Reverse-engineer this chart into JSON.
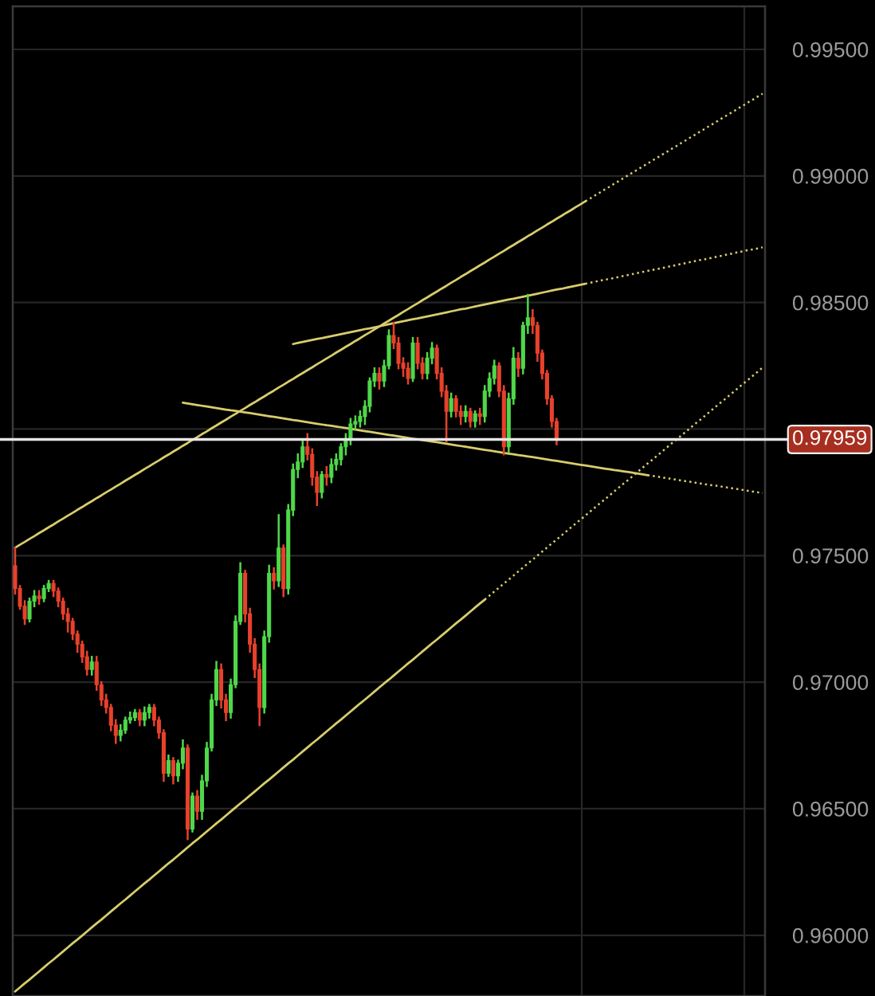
{
  "chart_data": {
    "type": "candlestick",
    "categories": [
      null,
      null,
      null,
      null,
      null,
      null,
      null,
      null,
      null,
      null,
      null,
      null,
      null,
      null,
      null,
      null,
      null,
      null,
      null,
      null,
      null,
      null,
      null,
      null,
      null,
      null,
      null,
      null,
      null,
      null,
      null,
      null,
      null,
      null,
      null,
      null,
      null,
      null,
      null,
      null,
      null,
      null,
      null,
      null,
      null,
      null,
      null,
      null,
      null,
      null,
      null,
      null,
      null,
      null,
      null,
      null,
      null,
      null,
      null,
      null,
      null,
      null,
      null,
      null,
      null,
      null,
      null,
      null,
      null,
      null,
      null,
      null,
      null,
      null,
      null,
      null,
      null,
      null,
      null,
      null,
      null,
      null,
      null,
      null,
      null,
      null,
      null,
      null,
      null,
      null,
      null,
      null,
      null,
      null,
      null,
      null,
      null,
      null,
      null,
      null,
      null,
      null,
      null,
      null,
      null,
      null,
      null,
      null,
      null,
      null,
      null,
      null,
      null,
      null,
      null,
      null,
      null,
      null,
      null,
      null,
      null,
      null,
      null,
      null,
      null,
      null,
      null,
      null,
      null,
      null,
      null,
      null,
      null,
      null,
      null,
      null,
      null,
      null,
      null,
      null,
      null,
      null,
      null,
      null,
      null,
      null,
      null,
      null,
      null,
      null,
      null,
      null,
      null,
      null,
      null,
      null,
      null
    ],
    "ohlc": [
      [
        0.9746,
        0.9753,
        0.9735,
        0.9737
      ],
      [
        0.9737,
        0.9738,
        0.9729,
        0.973
      ],
      [
        0.973,
        0.9732,
        0.9723,
        0.9725
      ],
      [
        0.9725,
        0.9733,
        0.9724,
        0.9732
      ],
      [
        0.9732,
        0.9736,
        0.973,
        0.9734
      ],
      [
        0.9734,
        0.9736,
        0.9731,
        0.9733
      ],
      [
        0.9733,
        0.9738,
        0.9732,
        0.9737
      ],
      [
        0.9737,
        0.974,
        0.9736,
        0.9739
      ],
      [
        0.9739,
        0.974,
        0.9734,
        0.9736
      ],
      [
        0.9736,
        0.9737,
        0.973,
        0.9732
      ],
      [
        0.9732,
        0.9733,
        0.9725,
        0.9727
      ],
      [
        0.9727,
        0.9729,
        0.972,
        0.9724
      ],
      [
        0.9724,
        0.9725,
        0.9717,
        0.9719
      ],
      [
        0.9719,
        0.972,
        0.9712,
        0.9715
      ],
      [
        0.9715,
        0.9716,
        0.9708,
        0.971
      ],
      [
        0.971,
        0.9712,
        0.9703,
        0.9705
      ],
      [
        0.9705,
        0.971,
        0.9703,
        0.9708
      ],
      [
        0.9708,
        0.971,
        0.9697,
        0.9699
      ],
      [
        0.9699,
        0.97,
        0.9691,
        0.9693
      ],
      [
        0.9693,
        0.9695,
        0.9688,
        0.969
      ],
      [
        0.969,
        0.9691,
        0.9681,
        0.9683
      ],
      [
        0.9683,
        0.9685,
        0.9676,
        0.9679
      ],
      [
        0.9679,
        0.9683,
        0.9677,
        0.9681
      ],
      [
        0.9681,
        0.9686,
        0.968,
        0.9685
      ],
      [
        0.9685,
        0.9688,
        0.9684,
        0.9686
      ],
      [
        0.9686,
        0.9689,
        0.9685,
        0.9688
      ],
      [
        0.9688,
        0.9689,
        0.9683,
        0.9685
      ],
      [
        0.9685,
        0.969,
        0.9683,
        0.9688
      ],
      [
        0.9688,
        0.9691,
        0.9686,
        0.969
      ],
      [
        0.969,
        0.9691,
        0.9683,
        0.9685
      ],
      [
        0.9685,
        0.9686,
        0.9678,
        0.968
      ],
      [
        0.968,
        0.9681,
        0.9661,
        0.9664
      ],
      [
        0.9664,
        0.9671,
        0.9663,
        0.9669
      ],
      [
        0.9669,
        0.967,
        0.966,
        0.9663
      ],
      [
        0.9663,
        0.9669,
        0.9661,
        0.9668
      ],
      [
        0.9668,
        0.9677,
        0.9666,
        0.9674
      ],
      [
        0.9674,
        0.9675,
        0.9638,
        0.9642
      ],
      [
        0.9642,
        0.9656,
        0.9641,
        0.9655
      ],
      [
        0.9655,
        0.9657,
        0.9646,
        0.9649
      ],
      [
        0.9649,
        0.9663,
        0.9646,
        0.9661
      ],
      [
        0.9661,
        0.9676,
        0.9659,
        0.9674
      ],
      [
        0.9674,
        0.9695,
        0.9673,
        0.9693
      ],
      [
        0.9693,
        0.9708,
        0.9691,
        0.9705
      ],
      [
        0.9705,
        0.9707,
        0.969,
        0.9693
      ],
      [
        0.9693,
        0.9695,
        0.9685,
        0.9688
      ],
      [
        0.9688,
        0.9701,
        0.9686,
        0.9699
      ],
      [
        0.9699,
        0.9726,
        0.9698,
        0.9724
      ],
      [
        0.9724,
        0.9747,
        0.9723,
        0.9743
      ],
      [
        0.9743,
        0.9744,
        0.9724,
        0.9727
      ],
      [
        0.9727,
        0.9729,
        0.9712,
        0.9715
      ],
      [
        0.9715,
        0.9717,
        0.9702,
        0.9705
      ],
      [
        0.9705,
        0.9707,
        0.9683,
        0.969
      ],
      [
        0.969,
        0.972,
        0.9688,
        0.9718
      ],
      [
        0.9718,
        0.9746,
        0.9716,
        0.9743
      ],
      [
        0.9743,
        0.9745,
        0.9737,
        0.974
      ],
      [
        0.974,
        0.9766,
        0.9738,
        0.9753
      ],
      [
        0.9753,
        0.9754,
        0.9734,
        0.9737
      ],
      [
        0.9737,
        0.977,
        0.9735,
        0.9768
      ],
      [
        0.9768,
        0.9786,
        0.9766,
        0.9784
      ],
      [
        0.9784,
        0.979,
        0.9781,
        0.9787
      ],
      [
        0.9787,
        0.9795,
        0.9785,
        0.9793
      ],
      [
        0.9793,
        0.9798,
        0.9788,
        0.979
      ],
      [
        0.979,
        0.9792,
        0.9778,
        0.9781
      ],
      [
        0.9781,
        0.9783,
        0.977,
        0.9775
      ],
      [
        0.9775,
        0.9783,
        0.9773,
        0.9782
      ],
      [
        0.9782,
        0.9785,
        0.9778,
        0.9781
      ],
      [
        0.9781,
        0.9788,
        0.9779,
        0.9786
      ],
      [
        0.9786,
        0.979,
        0.9784,
        0.9788
      ],
      [
        0.9788,
        0.9794,
        0.9786,
        0.9793
      ],
      [
        0.9793,
        0.9798,
        0.979,
        0.9796
      ],
      [
        0.9796,
        0.9804,
        0.9794,
        0.9802
      ],
      [
        0.9802,
        0.9805,
        0.98,
        0.9803
      ],
      [
        0.9803,
        0.9807,
        0.9801,
        0.9805
      ],
      [
        0.9805,
        0.9811,
        0.9802,
        0.9809
      ],
      [
        0.9809,
        0.982,
        0.9807,
        0.9819
      ],
      [
        0.9819,
        0.9824,
        0.9817,
        0.9822
      ],
      [
        0.9822,
        0.9824,
        0.9816,
        0.9819
      ],
      [
        0.9819,
        0.9827,
        0.9817,
        0.9825
      ],
      [
        0.9825,
        0.9839,
        0.9824,
        0.9837
      ],
      [
        0.9837,
        0.9842,
        0.9832,
        0.9834
      ],
      [
        0.9834,
        0.9836,
        0.9824,
        0.9826
      ],
      [
        0.9826,
        0.9828,
        0.9821,
        0.9824
      ],
      [
        0.9824,
        0.9826,
        0.9818,
        0.982
      ],
      [
        0.982,
        0.9836,
        0.9819,
        0.9834
      ],
      [
        0.9834,
        0.9836,
        0.9824,
        0.9826
      ],
      [
        0.9826,
        0.9828,
        0.982,
        0.9822
      ],
      [
        0.9822,
        0.983,
        0.982,
        0.9828
      ],
      [
        0.9828,
        0.9834,
        0.9826,
        0.9832
      ],
      [
        0.9832,
        0.9833,
        0.982,
        0.9822
      ],
      [
        0.9822,
        0.9824,
        0.9813,
        0.9815
      ],
      [
        0.9815,
        0.9817,
        0.9795,
        0.9807
      ],
      [
        0.9807,
        0.9814,
        0.9805,
        0.9812
      ],
      [
        0.9812,
        0.9813,
        0.9805,
        0.9807
      ],
      [
        0.9807,
        0.9809,
        0.9802,
        0.9805
      ],
      [
        0.9805,
        0.9809,
        0.9803,
        0.9807
      ],
      [
        0.9807,
        0.9808,
        0.9801,
        0.9803
      ],
      [
        0.9803,
        0.9807,
        0.9801,
        0.9806
      ],
      [
        0.9806,
        0.9808,
        0.9802,
        0.9805
      ],
      [
        0.9805,
        0.9817,
        0.9803,
        0.9815
      ],
      [
        0.9815,
        0.9822,
        0.9813,
        0.982
      ],
      [
        0.982,
        0.9827,
        0.9818,
        0.9825
      ],
      [
        0.9825,
        0.9826,
        0.9813,
        0.9815
      ],
      [
        0.9815,
        0.9817,
        0.979,
        0.9793
      ],
      [
        0.9793,
        0.9814,
        0.9791,
        0.9812
      ],
      [
        0.9812,
        0.9832,
        0.981,
        0.9828
      ],
      [
        0.9828,
        0.983,
        0.9821,
        0.9824
      ],
      [
        0.9824,
        0.9842,
        0.9822,
        0.9841
      ],
      [
        0.9841,
        0.9853,
        0.9838,
        0.9844
      ],
      [
        0.9844,
        0.9847,
        0.9838,
        0.9841
      ],
      [
        0.9841,
        0.9842,
        0.9827,
        0.983
      ],
      [
        0.983,
        0.9831,
        0.982,
        0.9822
      ],
      [
        0.9822,
        0.9823,
        0.981,
        0.9812
      ],
      [
        0.9812,
        0.9813,
        0.9801,
        0.9803
      ],
      [
        0.9803,
        0.9804,
        0.9794,
        0.97959
      ],
      null,
      null,
      null,
      null,
      null,
      null,
      null,
      null,
      null,
      null,
      null,
      null,
      null,
      null,
      null,
      null,
      null,
      null,
      null,
      null,
      null,
      null,
      null,
      null,
      null,
      null,
      null,
      null,
      null,
      null,
      null,
      null,
      null,
      null,
      null,
      null,
      null,
      null,
      null,
      null,
      null,
      null,
      null
    ],
    "colors": [
      "#e8412c",
      "#e8412c",
      "#e8412c",
      "#4fd84a",
      "#4fd84a",
      "#e8412c",
      "#4fd84a",
      "#4fd84a",
      "#e8412c",
      "#e8412c",
      "#e8412c",
      "#e8412c",
      "#e8412c",
      "#e8412c",
      "#e8412c",
      "#e8412c",
      "#4fd84a",
      "#e8412c",
      "#e8412c",
      "#e8412c",
      "#e8412c",
      "#e8412c",
      "#4fd84a",
      "#4fd84a",
      "#4fd84a",
      "#4fd84a",
      "#e8412c",
      "#4fd84a",
      "#4fd84a",
      "#e8412c",
      "#e8412c",
      "#e8412c",
      "#4fd84a",
      "#e8412c",
      "#4fd84a",
      "#4fd84a",
      "#e8412c",
      "#4fd84a",
      "#e8412c",
      "#4fd84a",
      "#4fd84a",
      "#4fd84a",
      "#4fd84a",
      "#e8412c",
      "#e8412c",
      "#4fd84a",
      "#4fd84a",
      "#4fd84a",
      "#e8412c",
      "#e8412c",
      "#e8412c",
      "#e8412c",
      "#4fd84a",
      "#4fd84a",
      "#e8412c",
      "#4fd84a",
      "#e8412c",
      "#4fd84a",
      "#4fd84a",
      "#4fd84a",
      "#4fd84a",
      "#e8412c",
      "#e8412c",
      "#e8412c",
      "#4fd84a",
      "#e8412c",
      "#4fd84a",
      "#4fd84a",
      "#4fd84a",
      "#4fd84a",
      "#4fd84a",
      "#4fd84a",
      "#4fd84a",
      "#4fd84a",
      "#4fd84a",
      "#4fd84a",
      "#e8412c",
      "#4fd84a",
      "#4fd84a",
      "#e8412c",
      "#e8412c",
      "#e8412c",
      "#e8412c",
      "#4fd84a",
      "#e8412c",
      "#e8412c",
      "#4fd84a",
      "#4fd84a",
      "#e8412c",
      "#e8412c",
      "#e8412c",
      "#4fd84a",
      "#e8412c",
      "#e8412c",
      "#4fd84a",
      "#e8412c",
      "#4fd84a",
      "#e8412c",
      "#4fd84a",
      "#4fd84a",
      "#4fd84a",
      "#e8412c",
      "#e8412c",
      "#4fd84a",
      "#4fd84a",
      "#e8412c",
      "#4fd84a",
      "#4fd84a",
      "#e8412c",
      "#e8412c",
      "#e8412c",
      "#e8412c",
      "#e8412c",
      "#e8412c",
      null,
      null,
      null,
      null,
      null,
      null,
      null,
      null,
      null,
      null,
      null,
      null,
      null,
      null,
      null,
      null,
      null,
      null,
      null,
      null,
      null,
      null,
      null,
      null,
      null,
      null,
      null,
      null,
      null,
      null,
      null,
      null,
      null,
      null,
      null,
      null,
      null,
      null,
      null,
      null,
      null,
      null,
      null
    ],
    "series": [
      {
        "type": "line",
        "color": "#d8cd6c",
        "line_style": "solid",
        "values": [
          0.97531,
          0.97543,
          0.97554,
          0.97566,
          0.97577,
          0.97589,
          0.976,
          0.97612,
          0.97623,
          0.97635,
          0.97646,
          0.97658,
          0.97669,
          0.97681,
          0.97692,
          0.97704,
          0.97715,
          0.97727,
          0.97738,
          0.9775,
          0.97761,
          0.97773,
          0.97784,
          0.97796,
          0.97807,
          0.97819,
          0.9783,
          0.97842,
          0.97853,
          0.97865,
          0.97876,
          0.97888,
          0.97899,
          0.97911,
          0.97922,
          0.97934,
          0.97945,
          0.97957,
          0.97968,
          0.9798,
          0.97991,
          0.98003,
          0.98014,
          0.98026,
          0.98037,
          0.98049,
          0.9806,
          0.98072,
          0.98083,
          0.98095,
          0.98106,
          0.98118,
          0.98129,
          0.98141,
          0.98152,
          0.98164,
          0.98175,
          0.98187,
          0.98198,
          0.9821,
          0.98221,
          0.98233,
          0.98244,
          0.98256,
          0.98267,
          0.98279,
          0.9829,
          0.98302,
          0.98313,
          0.98325,
          0.98336,
          0.98348,
          0.98359,
          0.98371,
          0.98382,
          0.98394,
          0.98405,
          0.98417,
          0.98428,
          0.9844,
          0.98451,
          0.98463,
          0.98474,
          0.98486,
          0.98497,
          0.98509,
          0.9852,
          0.98532,
          0.98543,
          0.98555,
          0.98566,
          0.98578,
          0.98589,
          0.98601,
          0.98612,
          0.98624,
          0.98635,
          0.98647,
          0.98658,
          0.9867,
          0.98681,
          0.98693,
          0.98704,
          0.98716,
          0.98727,
          0.98739,
          0.9875,
          0.98762,
          0.98773,
          0.98785,
          0.98796,
          0.98808,
          0.98819,
          0.98831,
          0.98842,
          0.98854,
          0.98865,
          0.98877,
          0.98888,
          0.989,
          null,
          null,
          null,
          null,
          null,
          null,
          null,
          null,
          null,
          null,
          null,
          null,
          null,
          null,
          null,
          null,
          null,
          null,
          null,
          null,
          null,
          null,
          null,
          null,
          null,
          null,
          null,
          null,
          null,
          null,
          null,
          null,
          null,
          null,
          null,
          null,
          null
        ]
      },
      {
        "type": "line",
        "color": "#d8cd6c",
        "line_style": "dotted",
        "values": [
          null,
          null,
          null,
          null,
          null,
          null,
          null,
          null,
          null,
          null,
          null,
          null,
          null,
          null,
          null,
          null,
          null,
          null,
          null,
          null,
          null,
          null,
          null,
          null,
          null,
          null,
          null,
          null,
          null,
          null,
          null,
          null,
          null,
          null,
          null,
          null,
          null,
          null,
          null,
          null,
          null,
          null,
          null,
          null,
          null,
          null,
          null,
          null,
          null,
          null,
          null,
          null,
          null,
          null,
          null,
          null,
          null,
          null,
          null,
          null,
          null,
          null,
          null,
          null,
          null,
          null,
          null,
          null,
          null,
          null,
          null,
          null,
          null,
          null,
          null,
          null,
          null,
          null,
          null,
          null,
          null,
          null,
          null,
          null,
          null,
          null,
          null,
          null,
          null,
          null,
          null,
          null,
          null,
          null,
          null,
          null,
          null,
          null,
          null,
          null,
          null,
          null,
          null,
          null,
          null,
          null,
          null,
          null,
          null,
          null,
          null,
          null,
          null,
          null,
          null,
          null,
          null,
          null,
          null,
          0.989,
          0.98911,
          0.98923,
          0.98934,
          0.98946,
          0.98957,
          0.98969,
          0.9898,
          0.98992,
          0.99003,
          0.99015,
          0.99026,
          0.99038,
          0.99049,
          0.99061,
          0.99072,
          0.99084,
          0.99095,
          0.99107,
          0.99118,
          0.9913,
          0.99141,
          0.99153,
          0.99164,
          0.99176,
          0.99187,
          0.99199,
          0.9921,
          0.99222,
          0.99233,
          0.99245,
          0.99256,
          0.99268,
          0.99279,
          0.99291,
          0.99302,
          0.99314,
          0.99325
        ]
      },
      {
        "type": "line",
        "color": "#d8cd6c",
        "line_style": "solid",
        "values": [
          0.95778,
          0.95794,
          0.9581,
          0.95825,
          0.95841,
          0.95857,
          0.95873,
          0.95889,
          0.95904,
          0.9592,
          0.95936,
          0.95952,
          0.95968,
          0.95983,
          0.95999,
          0.96015,
          0.96031,
          0.96047,
          0.96062,
          0.96078,
          0.96094,
          0.9611,
          0.96126,
          0.96141,
          0.96157,
          0.96173,
          0.96189,
          0.96205,
          0.9622,
          0.96236,
          0.96252,
          0.96268,
          0.96284,
          0.96299,
          0.96315,
          0.96331,
          0.96347,
          0.96363,
          0.96378,
          0.96394,
          0.9641,
          0.96426,
          0.96442,
          0.96457,
          0.96473,
          0.96489,
          0.96505,
          0.96521,
          0.96536,
          0.96552,
          0.96568,
          0.96584,
          0.966,
          0.96615,
          0.96631,
          0.96647,
          0.96663,
          0.96679,
          0.96694,
          0.9671,
          0.96726,
          0.96742,
          0.96758,
          0.96773,
          0.96789,
          0.96805,
          0.96821,
          0.96837,
          0.96852,
          0.96868,
          0.96884,
          0.969,
          0.96916,
          0.96931,
          0.96947,
          0.96963,
          0.96979,
          0.96995,
          0.9701,
          0.97026,
          0.97042,
          0.97058,
          0.97074,
          0.97089,
          0.97105,
          0.97121,
          0.97137,
          0.97153,
          0.97168,
          0.97184,
          0.972,
          0.97216,
          0.97232,
          0.97247,
          0.97263,
          0.97279,
          0.97295,
          0.97311,
          0.97326,
          null,
          null,
          null,
          null,
          null,
          null,
          null,
          null,
          null,
          null,
          null,
          null,
          null,
          null,
          null,
          null,
          null,
          null,
          null,
          null,
          null,
          null,
          null,
          null,
          null,
          null,
          null,
          null,
          null,
          null,
          null,
          null,
          null,
          null,
          null,
          null,
          null,
          null,
          null,
          null,
          null,
          null,
          null,
          null,
          null,
          null,
          null,
          null,
          null,
          null,
          null,
          null,
          null,
          null,
          null,
          null,
          null,
          null
        ]
      },
      {
        "type": "line",
        "color": "#d8cd6c",
        "line_style": "dotted",
        "values": [
          null,
          null,
          null,
          null,
          null,
          null,
          null,
          null,
          null,
          null,
          null,
          null,
          null,
          null,
          null,
          null,
          null,
          null,
          null,
          null,
          null,
          null,
          null,
          null,
          null,
          null,
          null,
          null,
          null,
          null,
          null,
          null,
          null,
          null,
          null,
          null,
          null,
          null,
          null,
          null,
          null,
          null,
          null,
          null,
          null,
          null,
          null,
          null,
          null,
          null,
          null,
          null,
          null,
          null,
          null,
          null,
          null,
          null,
          null,
          null,
          null,
          null,
          null,
          null,
          null,
          null,
          null,
          null,
          null,
          null,
          null,
          null,
          null,
          null,
          null,
          null,
          null,
          null,
          null,
          null,
          null,
          null,
          null,
          null,
          null,
          null,
          null,
          null,
          null,
          null,
          null,
          null,
          null,
          null,
          null,
          null,
          null,
          null,
          0.97326,
          0.97342,
          0.97358,
          0.97374,
          0.9739,
          0.97405,
          0.97421,
          0.97437,
          0.97453,
          0.97469,
          0.97484,
          0.975,
          0.97516,
          0.97532,
          0.97548,
          0.97563,
          0.97579,
          0.97595,
          0.97611,
          0.97627,
          0.97642,
          0.97658,
          0.97674,
          0.9769,
          0.97706,
          0.97721,
          0.97737,
          0.97753,
          0.97769,
          0.97785,
          0.978,
          0.97816,
          0.97832,
          0.97848,
          0.97864,
          0.97879,
          0.97895,
          0.97911,
          0.97927,
          0.97943,
          0.97958,
          0.97974,
          0.9799,
          0.98006,
          0.98022,
          0.98037,
          0.98053,
          0.98069,
          0.98085,
          0.98101,
          0.98116,
          0.98132,
          0.98148,
          0.98164,
          0.9818,
          0.98195,
          0.98211,
          0.98227,
          0.98243
        ]
      },
      {
        "type": "line",
        "color": "#d8cd6c",
        "line_style": "solid",
        "values": [
          null,
          null,
          null,
          null,
          null,
          null,
          null,
          null,
          null,
          null,
          null,
          null,
          null,
          null,
          null,
          null,
          null,
          null,
          null,
          null,
          null,
          null,
          null,
          null,
          null,
          null,
          null,
          null,
          null,
          null,
          null,
          null,
          null,
          null,
          null,
          null,
          null,
          null,
          null,
          null,
          null,
          null,
          null,
          null,
          null,
          null,
          null,
          null,
          null,
          null,
          null,
          null,
          null,
          null,
          null,
          null,
          null,
          null,
          0.98336,
          0.9834,
          0.98344,
          0.98348,
          0.98352,
          0.98356,
          0.98359,
          0.98363,
          0.98367,
          0.98371,
          0.98375,
          0.98379,
          0.98383,
          0.98387,
          0.98391,
          0.98395,
          0.98398,
          0.98402,
          0.98406,
          0.9841,
          0.98414,
          0.98418,
          0.98422,
          0.98426,
          0.9843,
          0.98434,
          0.98437,
          0.98441,
          0.98445,
          0.98449,
          0.98453,
          0.98457,
          0.98461,
          0.98465,
          0.98469,
          0.98473,
          0.98476,
          0.9848,
          0.98484,
          0.98488,
          0.98492,
          0.98496,
          0.985,
          0.98504,
          0.98508,
          0.98512,
          0.98515,
          0.98519,
          0.98523,
          0.98527,
          0.98531,
          0.98535,
          0.98539,
          0.98543,
          0.98547,
          0.98551,
          0.98554,
          0.98558,
          0.98562,
          0.98566,
          0.9857,
          0.98574,
          null,
          null,
          null,
          null,
          null,
          null,
          null,
          null,
          null,
          null,
          null,
          null,
          null,
          null,
          null,
          null,
          null,
          null,
          null,
          null,
          null,
          null,
          null,
          null,
          null,
          null,
          null,
          null,
          null,
          null,
          null,
          null,
          null,
          null,
          null,
          null,
          null
        ]
      },
      {
        "type": "line",
        "color": "#d8cd6c",
        "line_style": "dotted",
        "values": [
          null,
          null,
          null,
          null,
          null,
          null,
          null,
          null,
          null,
          null,
          null,
          null,
          null,
          null,
          null,
          null,
          null,
          null,
          null,
          null,
          null,
          null,
          null,
          null,
          null,
          null,
          null,
          null,
          null,
          null,
          null,
          null,
          null,
          null,
          null,
          null,
          null,
          null,
          null,
          null,
          null,
          null,
          null,
          null,
          null,
          null,
          null,
          null,
          null,
          null,
          null,
          null,
          null,
          null,
          null,
          null,
          null,
          null,
          null,
          null,
          null,
          null,
          null,
          null,
          null,
          null,
          null,
          null,
          null,
          null,
          null,
          null,
          null,
          null,
          null,
          null,
          null,
          null,
          null,
          null,
          null,
          null,
          null,
          null,
          null,
          null,
          null,
          null,
          null,
          null,
          null,
          null,
          null,
          null,
          null,
          null,
          null,
          null,
          null,
          null,
          null,
          null,
          null,
          null,
          null,
          null,
          null,
          null,
          null,
          null,
          null,
          null,
          null,
          null,
          null,
          null,
          null,
          null,
          null,
          0.98574,
          0.98578,
          0.98582,
          0.98586,
          0.9859,
          0.98593,
          0.98597,
          0.98601,
          0.98605,
          0.98609,
          0.98613,
          0.98617,
          0.98621,
          0.98625,
          0.98629,
          0.98632,
          0.98636,
          0.9864,
          0.98644,
          0.98648,
          0.98652,
          0.98656,
          0.9866,
          0.98664,
          0.98668,
          0.98671,
          0.98675,
          0.98679,
          0.98683,
          0.98687,
          0.98691,
          0.98695,
          0.98699,
          0.98703,
          0.98707,
          0.9871,
          0.98714,
          0.98718
        ]
      },
      {
        "type": "line",
        "color": "#d8cd6c",
        "line_style": "solid",
        "values": [
          null,
          null,
          null,
          null,
          null,
          null,
          null,
          null,
          null,
          null,
          null,
          null,
          null,
          null,
          null,
          null,
          null,
          null,
          null,
          null,
          null,
          null,
          null,
          null,
          null,
          null,
          null,
          null,
          null,
          null,
          null,
          null,
          null,
          null,
          null,
          0.98104,
          0.98101,
          0.98098,
          0.98095,
          0.98092,
          0.98089,
          0.98086,
          0.98083,
          0.9808,
          0.98077,
          0.98074,
          0.98072,
          0.98069,
          0.98066,
          0.98063,
          0.9806,
          0.98057,
          0.98054,
          0.98051,
          0.98048,
          0.98045,
          0.98042,
          0.98039,
          0.98036,
          0.98033,
          0.9803,
          0.98027,
          0.98024,
          0.98021,
          0.98018,
          0.98015,
          0.98013,
          0.9801,
          0.98007,
          0.98004,
          0.98001,
          0.97998,
          0.97995,
          0.97992,
          0.97989,
          0.97986,
          0.97983,
          0.9798,
          0.97977,
          0.97974,
          0.97971,
          0.97968,
          0.97965,
          0.97962,
          0.97959,
          0.97956,
          0.97954,
          0.97951,
          0.97948,
          0.97945,
          0.97942,
          0.97939,
          0.97936,
          0.97933,
          0.9793,
          0.97927,
          0.97924,
          0.97921,
          0.97918,
          0.97915,
          0.97912,
          0.97909,
          0.97906,
          0.97903,
          0.979,
          0.97897,
          0.97895,
          0.97892,
          0.97889,
          0.97886,
          0.97883,
          0.9788,
          0.97877,
          0.97874,
          0.97871,
          0.97868,
          0.97865,
          0.97862,
          0.97859,
          0.97856,
          0.97853,
          0.9785,
          0.97847,
          0.97844,
          0.97841,
          0.97838,
          0.97836,
          0.97833,
          0.9783,
          0.97827,
          0.97824,
          0.97821,
          0.97818,
          null,
          null,
          null,
          null,
          null,
          null,
          null,
          null,
          null,
          null,
          null,
          null,
          null,
          null,
          null,
          null,
          null,
          null,
          null,
          null,
          null,
          null,
          null,
          null
        ]
      },
      {
        "type": "line",
        "color": "#d8cd6c",
        "line_style": "dotted",
        "values": [
          null,
          null,
          null,
          null,
          null,
          null,
          null,
          null,
          null,
          null,
          null,
          null,
          null,
          null,
          null,
          null,
          null,
          null,
          null,
          null,
          null,
          null,
          null,
          null,
          null,
          null,
          null,
          null,
          null,
          null,
          null,
          null,
          null,
          null,
          null,
          null,
          null,
          null,
          null,
          null,
          null,
          null,
          null,
          null,
          null,
          null,
          null,
          null,
          null,
          null,
          null,
          null,
          null,
          null,
          null,
          null,
          null,
          null,
          null,
          null,
          null,
          null,
          null,
          null,
          null,
          null,
          null,
          null,
          null,
          null,
          null,
          null,
          null,
          null,
          null,
          null,
          null,
          null,
          null,
          null,
          null,
          null,
          null,
          null,
          null,
          null,
          null,
          null,
          null,
          null,
          null,
          null,
          null,
          null,
          null,
          null,
          null,
          null,
          null,
          null,
          null,
          null,
          null,
          null,
          null,
          null,
          null,
          null,
          null,
          null,
          null,
          null,
          null,
          null,
          null,
          null,
          null,
          null,
          null,
          null,
          null,
          null,
          null,
          null,
          null,
          null,
          null,
          null,
          null,
          null,
          null,
          null,
          0.97818,
          0.97815,
          0.97812,
          0.97809,
          0.97806,
          0.97803,
          0.978,
          0.97797,
          0.97794,
          0.97791,
          0.97788,
          0.97785,
          0.97782,
          0.97779,
          0.97777,
          0.97774,
          0.97771,
          0.97768,
          0.97765,
          0.97762,
          0.97759,
          0.97756,
          0.97753,
          0.9775,
          0.97747
        ]
      }
    ],
    "ylim": [
      0.9576,
      0.9967
    ],
    "yticks": [
      {
        "value": 0.96,
        "label": "0.96000"
      },
      {
        "value": 0.965,
        "label": "0.96500"
      },
      {
        "value": 0.97,
        "label": "0.97000"
      },
      {
        "value": 0.975,
        "label": "0.97500"
      },
      {
        "value": 0.98,
        "label": null
      },
      {
        "value": 0.985,
        "label": "0.98500"
      },
      {
        "value": 0.99,
        "label": "0.99000"
      },
      {
        "value": 0.995,
        "label": "0.99500"
      }
    ],
    "ref_lines": [
      {
        "axis": "y",
        "value": 0.97959,
        "label": "0.97959",
        "color": "#e6e6e6"
      }
    ],
    "grid": "y",
    "tick_labels": "y"
  }
}
